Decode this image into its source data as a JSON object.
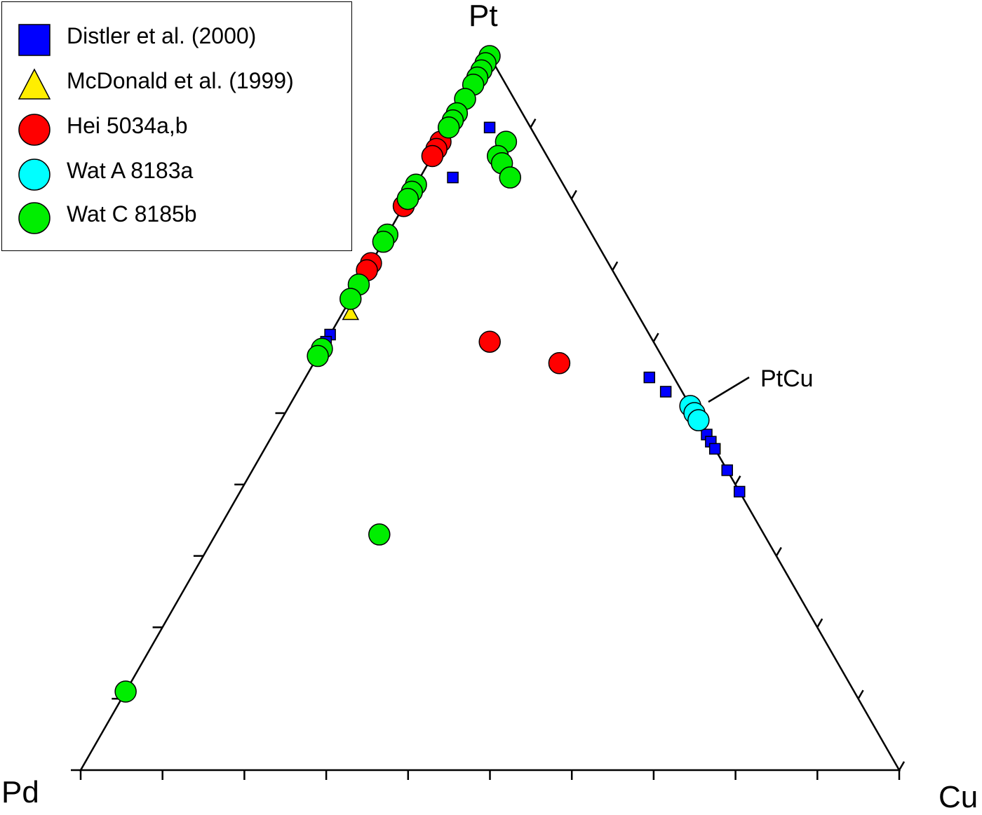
{
  "chart_data": {
    "type": "ternary-scatter",
    "vertices": {
      "top": "Pt",
      "left": "Pd",
      "right": "Cu"
    },
    "tick_step_percent": 10,
    "annotations": [
      {
        "text": "PtCu"
      }
    ],
    "series": [
      {
        "name": "Distler et al. (2000)",
        "marker": "square",
        "color": "#0000ff",
        "points": [
          {
            "Pt": 90,
            "Pd": 5,
            "Cu": 5
          },
          {
            "Pt": 83,
            "Pd": 13,
            "Cu": 4
          },
          {
            "Pt": 61,
            "Pd": 39,
            "Cu": 0
          },
          {
            "Pt": 60,
            "Pd": 40,
            "Cu": 0
          },
          {
            "Pt": 55,
            "Pd": 3,
            "Cu": 42
          },
          {
            "Pt": 53,
            "Pd": 2,
            "Cu": 45
          },
          {
            "Pt": 47,
            "Pd": 0,
            "Cu": 53
          },
          {
            "Pt": 46,
            "Pd": 0,
            "Cu": 54
          },
          {
            "Pt": 45,
            "Pd": 0,
            "Cu": 55
          },
          {
            "Pt": 42,
            "Pd": 0,
            "Cu": 58
          },
          {
            "Pt": 39,
            "Pd": 0,
            "Cu": 61
          }
        ]
      },
      {
        "name": "McDonald et al. (1999)",
        "marker": "triangle",
        "color": "#ffee00",
        "points": [
          {
            "Pt": 64,
            "Pd": 35,
            "Cu": 1
          }
        ]
      },
      {
        "name": "Hei 5034a,b",
        "marker": "circle",
        "color": "#ff0000",
        "points": [
          {
            "Pt": 88,
            "Pd": 12,
            "Cu": 0
          },
          {
            "Pt": 87,
            "Pd": 13,
            "Cu": 0
          },
          {
            "Pt": 86,
            "Pd": 14,
            "Cu": 0
          },
          {
            "Pt": 80,
            "Pd": 20,
            "Cu": 0
          },
          {
            "Pt": 79,
            "Pd": 21,
            "Cu": 0
          },
          {
            "Pt": 71,
            "Pd": 29,
            "Cu": 0
          },
          {
            "Pt": 70,
            "Pd": 30,
            "Cu": 0
          },
          {
            "Pt": 60,
            "Pd": 20,
            "Cu": 20
          },
          {
            "Pt": 57,
            "Pd": 13,
            "Cu": 30
          }
        ]
      },
      {
        "name": "Wat A 8183a",
        "marker": "circle",
        "color": "#00ffff",
        "points": [
          {
            "Pt": 51,
            "Pd": 0,
            "Cu": 49
          },
          {
            "Pt": 50,
            "Pd": 0,
            "Cu": 50
          },
          {
            "Pt": 49,
            "Pd": 0,
            "Cu": 51
          }
        ]
      },
      {
        "name": "Wat C 8185b",
        "marker": "circle",
        "color": "#00ee00",
        "points": [
          {
            "Pt": 100,
            "Pd": 0,
            "Cu": 0
          },
          {
            "Pt": 99,
            "Pd": 1,
            "Cu": 0
          },
          {
            "Pt": 98,
            "Pd": 2,
            "Cu": 0
          },
          {
            "Pt": 97,
            "Pd": 3,
            "Cu": 0
          },
          {
            "Pt": 96,
            "Pd": 4,
            "Cu": 0
          },
          {
            "Pt": 94,
            "Pd": 6,
            "Cu": 0
          },
          {
            "Pt": 92,
            "Pd": 8,
            "Cu": 0
          },
          {
            "Pt": 91,
            "Pd": 9,
            "Cu": 0
          },
          {
            "Pt": 90,
            "Pd": 10,
            "Cu": 0
          },
          {
            "Pt": 82,
            "Pd": 18,
            "Cu": 0
          },
          {
            "Pt": 81,
            "Pd": 19,
            "Cu": 0
          },
          {
            "Pt": 80,
            "Pd": 20,
            "Cu": 0
          },
          {
            "Pt": 75,
            "Pd": 25,
            "Cu": 0
          },
          {
            "Pt": 74,
            "Pd": 26,
            "Cu": 0
          },
          {
            "Pt": 68,
            "Pd": 32,
            "Cu": 0
          },
          {
            "Pt": 66,
            "Pd": 34,
            "Cu": 0
          },
          {
            "Pt": 59,
            "Pd": 41,
            "Cu": 0
          },
          {
            "Pt": 58,
            "Pd": 42,
            "Cu": 0
          },
          {
            "Pt": 33,
            "Pd": 47,
            "Cu": 20
          },
          {
            "Pt": 11,
            "Pd": 89,
            "Cu": 0
          },
          {
            "Pt": 88,
            "Pd": 4,
            "Cu": 8
          },
          {
            "Pt": 86,
            "Pd": 6,
            "Cu": 8
          },
          {
            "Pt": 85,
            "Pd": 6,
            "Cu": 9
          },
          {
            "Pt": 83,
            "Pd": 6,
            "Cu": 11
          }
        ]
      }
    ]
  }
}
